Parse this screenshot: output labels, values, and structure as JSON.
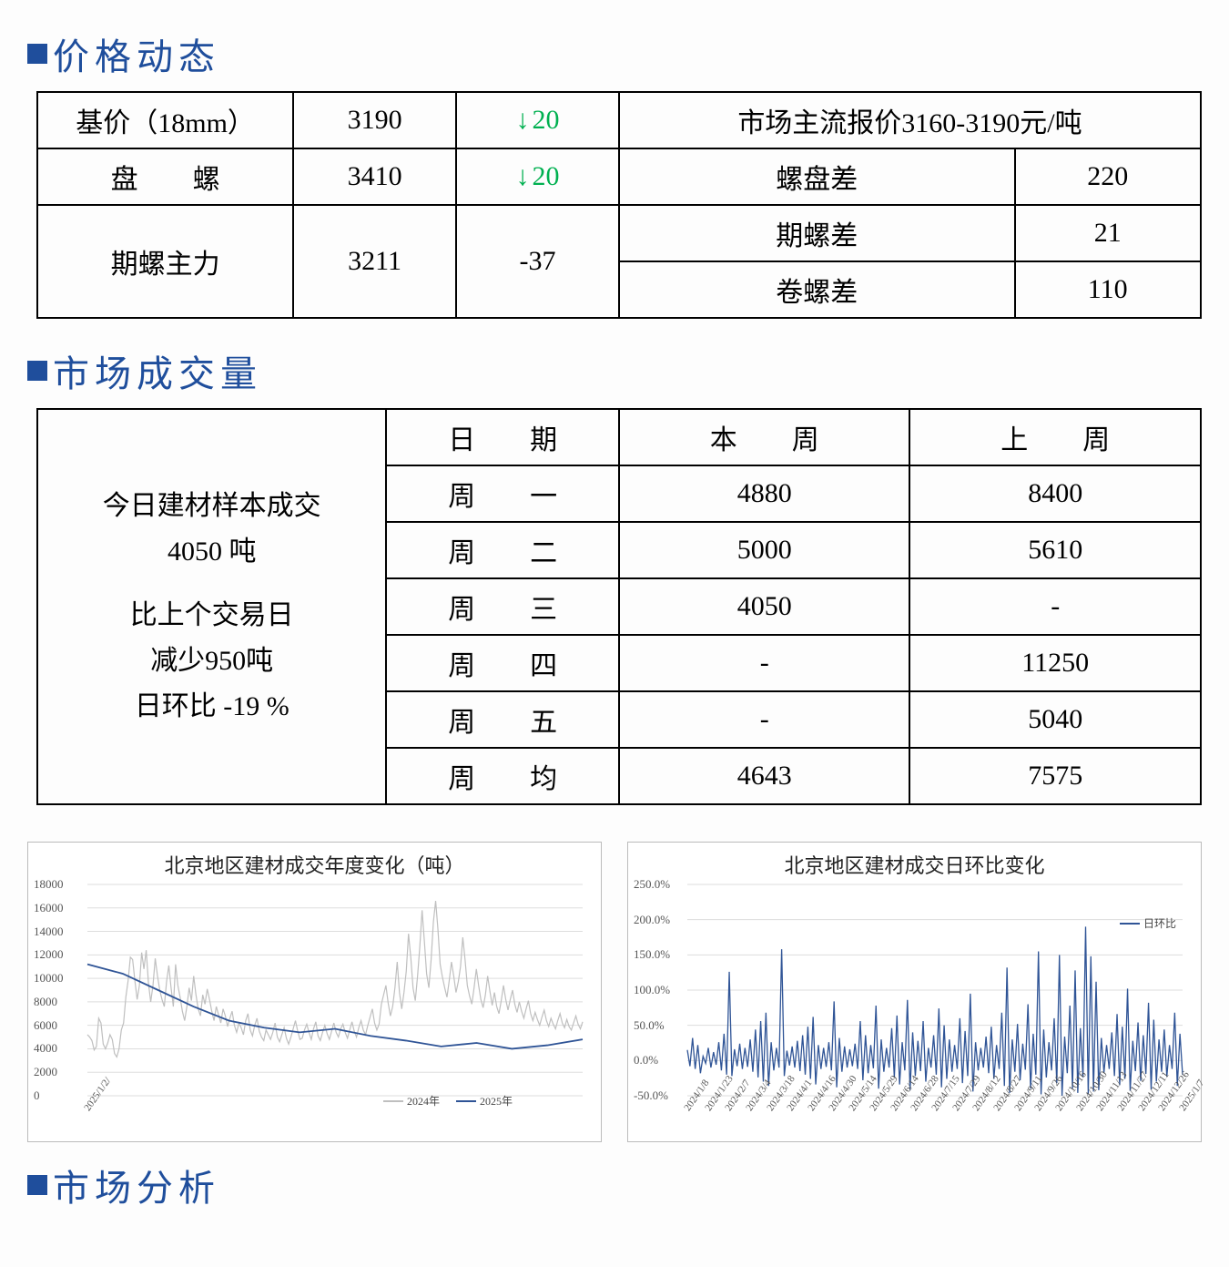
{
  "sections": {
    "price": "价格动态",
    "volume": "市场成交量",
    "analysis": "市场分析"
  },
  "price_table": {
    "r1": {
      "label": "基价（18mm）",
      "price": "3190",
      "delta_type": "down",
      "delta": "20",
      "note_full": "市场主流报价3160-3190元/吨"
    },
    "r2": {
      "label": "盘　　螺",
      "price": "3410",
      "delta_type": "down",
      "delta": "20",
      "note_label": "螺盘差",
      "note_val": "220"
    },
    "r3": {
      "label": "期螺主力",
      "price": "3211",
      "delta": "-37",
      "sub1_label": "期螺差",
      "sub1_val": "21",
      "sub2_label": "卷螺差",
      "sub2_val": "110"
    }
  },
  "volume_table": {
    "left": {
      "l1": "今日建材样本成交",
      "l2": "4050 吨",
      "l3": "比上个交易日",
      "l4": "减少950吨",
      "l5": "日环比 -19 %"
    },
    "header": {
      "date": "日　　期",
      "thisweek": "本　　周",
      "lastweek": "上　　周"
    },
    "rows": [
      {
        "d": "周　　一",
        "tw": "4880",
        "lw": "8400"
      },
      {
        "d": "周　　二",
        "tw": "5000",
        "lw": "5610"
      },
      {
        "d": "周　　三",
        "tw": "4050",
        "lw": "-"
      },
      {
        "d": "周　　四",
        "tw": "-",
        "lw": "11250"
      },
      {
        "d": "周　　五",
        "tw": "-",
        "lw": "5040"
      },
      {
        "d": "周　　均",
        "tw": "4643",
        "lw": "7575"
      }
    ]
  },
  "chart_left": {
    "title": "北京地区建材成交年度变化（吨）",
    "ymin": 0,
    "ymax": 18000,
    "ystep": 2000,
    "line_2024_color": "#bfbfbf",
    "line_2025_color": "#2f5496",
    "legend_2024": "2024年",
    "legend_2025": "2025年",
    "xlabel_0": "2025/1/2/",
    "data_2024": [
      5200,
      5000,
      4700,
      3900,
      4200,
      6600,
      6200,
      4400,
      4000,
      4500,
      5200,
      4800,
      3600,
      3300,
      4000,
      5600,
      6200,
      8400,
      9800,
      11800,
      11600,
      9800,
      8200,
      9400,
      12200,
      10800,
      12400,
      9600,
      8000,
      9400,
      11700,
      10200,
      9000,
      8200,
      7600,
      9700,
      11100,
      9200,
      7600,
      11200,
      9400,
      8400,
      7200,
      6400,
      7600,
      9200,
      8100,
      10200,
      8600,
      7400,
      6800,
      8600,
      7800,
      9100,
      8200,
      7200,
      6400,
      7600,
      6900,
      6200,
      7400,
      6800,
      5900,
      6600,
      7200,
      6000,
      5400,
      6200,
      5800,
      5200,
      6400,
      7000,
      5600,
      5100,
      6000,
      6600,
      5500,
      5000,
      4700,
      5600,
      5200,
      4800,
      5400,
      6200,
      5000,
      4600,
      5200,
      5800,
      4900,
      4400,
      5000,
      5700,
      6400,
      5500,
      4800,
      4900,
      5600,
      6100,
      5400,
      4800,
      5700,
      6300,
      5100,
      4700,
      5400,
      6000,
      5300,
      4800,
      5500,
      6200,
      5400,
      5000,
      5700,
      6100,
      5400,
      4900,
      5600,
      6300,
      5500,
      5000,
      5800,
      6400,
      5600,
      5200,
      6000,
      6700,
      7400,
      6200,
      5600,
      6100,
      7800,
      8600,
      9400,
      7900,
      6800,
      7600,
      9200,
      11400,
      8800,
      7400,
      8800,
      10600,
      13800,
      11800,
      9200,
      8100,
      10200,
      12700,
      15800,
      13200,
      10400,
      9200,
      11600,
      14800,
      16600,
      14200,
      11200,
      10100,
      9200,
      8400,
      9800,
      11400,
      10200,
      8800,
      9700,
      11000,
      13500,
      11600,
      9400,
      8500,
      7800,
      9200,
      10800,
      9400,
      8200,
      7500,
      8600,
      10200,
      8900,
      7700,
      8800,
      7600,
      7000,
      8100,
      9400,
      8200,
      7300,
      8200,
      9000,
      7800,
      7100,
      8000,
      7200,
      6600,
      7400,
      8100,
      7000,
      6400,
      7100,
      6500,
      6000,
      6700,
      7300,
      6400,
      5900,
      6600,
      6100,
      5700,
      6400,
      7000,
      6200,
      5800,
      6500,
      5900,
      5600,
      6200,
      6800,
      6100,
      5700,
      6300
    ],
    "data_2025": [
      11200,
      10400,
      9000,
      7600,
      6400,
      5800,
      5400,
      5700,
      5100,
      4700,
      4200,
      4500,
      4000,
      4300,
      4800
    ]
  },
  "chart_right": {
    "title": "北京地区建材成交日环比变化",
    "ymin": -50,
    "ymax": 250,
    "ystep": 50,
    "line_color": "#2f5496",
    "legend": "日环比",
    "xlabels": [
      "2024/1/8",
      "2024/1/23",
      "2024/2/7",
      "2024/3/4",
      "2024/3/18",
      "2024/4/1",
      "2024/4/16",
      "2024/4/30",
      "2024/5/14",
      "2024/5/29",
      "2024/6/14",
      "2024/6/28",
      "2024/7/15",
      "2024/7/29",
      "2024/8/12",
      "2024/8/27",
      "2024/9/11",
      "2024/9/26",
      "2024/10/16",
      "2024/10/30",
      "2024/11/13",
      "2024/11/27",
      "2024/12/11",
      "2024/12/26",
      "2025/1/7"
    ],
    "data": [
      15,
      -8,
      32,
      -12,
      22,
      -18,
      6,
      -4,
      18,
      -10,
      12,
      -6,
      26,
      -14,
      38,
      -20,
      126,
      -22,
      16,
      -8,
      24,
      -12,
      18,
      -9,
      30,
      -16,
      44,
      -24,
      56,
      -30,
      68,
      -36,
      26,
      -14,
      18,
      -10,
      158,
      -22,
      14,
      -7,
      20,
      -10,
      28,
      -15,
      36,
      -20,
      48,
      -26,
      62,
      -34,
      22,
      -12,
      18,
      -9,
      26,
      -14,
      84,
      -38,
      32,
      -16,
      20,
      -10,
      16,
      -8,
      24,
      -12,
      56,
      -28,
      36,
      -18,
      22,
      -11,
      78,
      -40,
      30,
      -16,
      18,
      -10,
      46,
      -24,
      64,
      -34,
      26,
      -14,
      86,
      -42,
      40,
      -22,
      28,
      -15,
      56,
      -30,
      18,
      -10,
      36,
      -20,
      74,
      -38,
      50,
      -26,
      30,
      -16,
      22,
      -12,
      60,
      -32,
      42,
      -22,
      95,
      -44,
      26,
      -14,
      18,
      -10,
      34,
      -18,
      48,
      -26,
      22,
      -12,
      68,
      -36,
      132,
      -46,
      30,
      -16,
      52,
      -28,
      24,
      -13,
      80,
      -40,
      38,
      -20,
      155,
      -48,
      44,
      -24,
      26,
      -14,
      60,
      -32,
      150,
      -50,
      34,
      -18,
      78,
      -40,
      128,
      -46,
      46,
      -24,
      190,
      -48,
      148,
      -44,
      112,
      -42,
      32,
      -17,
      22,
      -12,
      40,
      -22,
      66,
      -35,
      48,
      -26,
      102,
      -43,
      28,
      -15,
      54,
      -29,
      36,
      -19,
      82,
      -41,
      58,
      -30,
      30,
      -16,
      44,
      -23,
      22,
      -12,
      68,
      -36,
      38,
      -20
    ]
  }
}
